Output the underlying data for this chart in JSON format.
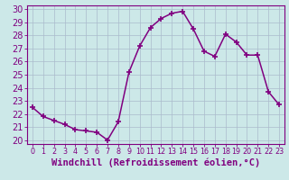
{
  "x": [
    0,
    1,
    2,
    3,
    4,
    5,
    6,
    7,
    8,
    9,
    10,
    11,
    12,
    13,
    14,
    15,
    16,
    17,
    18,
    19,
    20,
    21,
    22,
    23
  ],
  "y": [
    22.5,
    21.8,
    21.5,
    21.2,
    20.8,
    20.7,
    20.6,
    20.0,
    21.4,
    25.2,
    27.2,
    28.6,
    29.3,
    29.7,
    29.85,
    28.5,
    26.8,
    26.4,
    28.1,
    27.5,
    26.5,
    26.5,
    23.7,
    22.7
  ],
  "line_color": "#800080",
  "marker": "+",
  "marker_size": 5,
  "marker_lw": 1.2,
  "xlabel": "Windchill (Refroidissement éolien,°C)",
  "ylabel": "",
  "ylim": [
    19.7,
    30.3
  ],
  "xlim": [
    -0.5,
    23.5
  ],
  "yticks": [
    20,
    21,
    22,
    23,
    24,
    25,
    26,
    27,
    28,
    29,
    30
  ],
  "xticks": [
    0,
    1,
    2,
    3,
    4,
    5,
    6,
    7,
    8,
    9,
    10,
    11,
    12,
    13,
    14,
    15,
    16,
    17,
    18,
    19,
    20,
    21,
    22,
    23
  ],
  "bg_color": "#cce8e8",
  "grid_color": "#aabbcc",
  "line_color_axis": "#800080",
  "tick_color": "#800080",
  "font_size_y": 7.0,
  "font_size_x": 5.8,
  "xlabel_fontsize": 7.5,
  "line_width": 1.1
}
